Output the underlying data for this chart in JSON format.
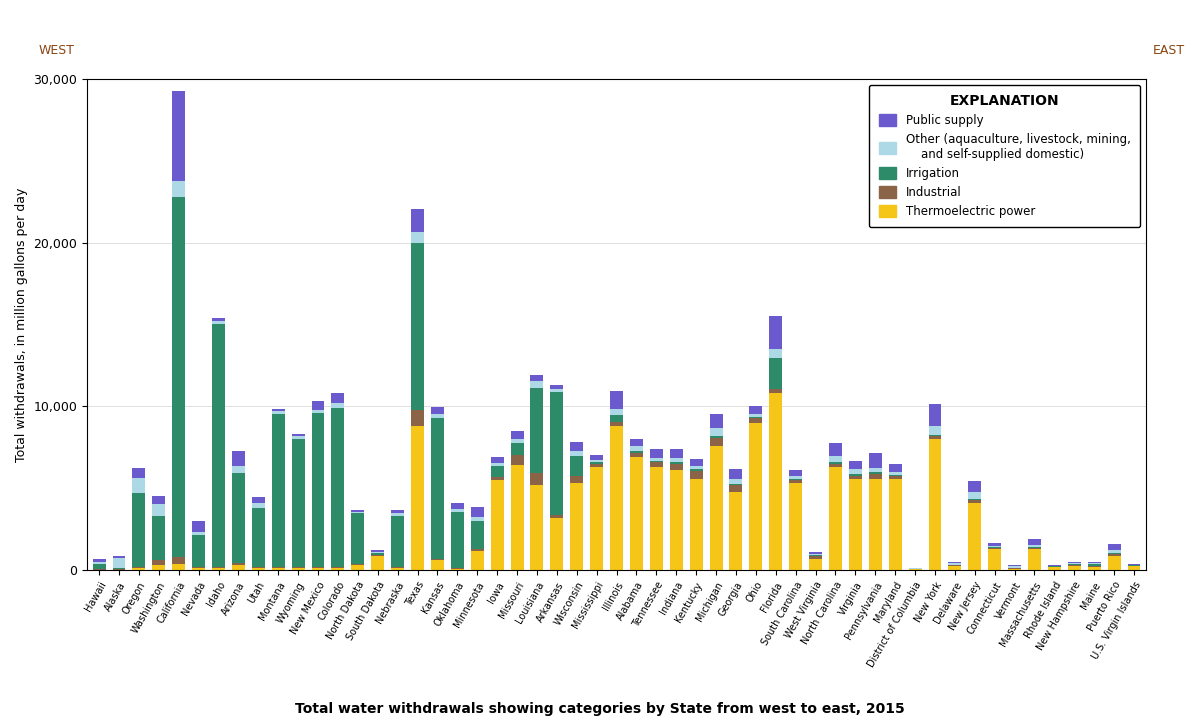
{
  "states": [
    "Hawaii",
    "Alaska",
    "Oregon",
    "Washington",
    "California",
    "Nevada",
    "Idaho",
    "Arizona",
    "Utah",
    "Montana",
    "Wyoming",
    "New Mexico",
    "Colorado",
    "North Dakota",
    "South Dakota",
    "Nebraska",
    "Texas",
    "Kansas",
    "Oklahoma",
    "Minnesota",
    "Iowa",
    "Missouri",
    "Louisiana",
    "Arkansas",
    "Wisconsin",
    "Mississippi",
    "Illinois",
    "Alabama",
    "Tennessee",
    "Indiana",
    "Kentucky",
    "Michigan",
    "Georgia",
    "Ohio",
    "Florida",
    "South Carolina",
    "West Virginia",
    "North Carolina",
    "Virginia",
    "Pennsylvania",
    "Maryland",
    "District of Columbia",
    "New York",
    "Delaware",
    "New Jersey",
    "Connecticut",
    "Vermont",
    "Massachusetts",
    "Rhode Island",
    "New Hampshire",
    "Maine",
    "Puerto Rico",
    "U.S. Virgin Islands"
  ],
  "public_supply": [
    200,
    100,
    600,
    500,
    5500,
    700,
    200,
    900,
    350,
    150,
    100,
    500,
    600,
    100,
    100,
    150,
    1400,
    400,
    350,
    600,
    350,
    500,
    400,
    250,
    600,
    250,
    1100,
    450,
    550,
    550,
    450,
    900,
    600,
    450,
    2000,
    350,
    100,
    800,
    500,
    900,
    450,
    30,
    1300,
    80,
    700,
    180,
    80,
    350,
    80,
    80,
    80,
    350,
    30
  ],
  "other": [
    80,
    600,
    900,
    700,
    1000,
    180,
    180,
    450,
    280,
    180,
    180,
    180,
    280,
    80,
    80,
    180,
    650,
    280,
    180,
    280,
    180,
    280,
    380,
    180,
    280,
    180,
    380,
    280,
    180,
    280,
    180,
    480,
    280,
    180,
    550,
    180,
    80,
    380,
    280,
    280,
    180,
    30,
    550,
    80,
    380,
    80,
    80,
    130,
    30,
    80,
    80,
    180,
    30
  ],
  "irrigation": [
    350,
    100,
    4500,
    2700,
    22000,
    1900,
    14800,
    5500,
    3600,
    9300,
    7800,
    9400,
    9700,
    3100,
    100,
    3100,
    10200,
    8600,
    3400,
    1700,
    700,
    700,
    5200,
    7500,
    1200,
    100,
    400,
    100,
    100,
    100,
    100,
    100,
    100,
    100,
    1900,
    100,
    50,
    100,
    100,
    100,
    50,
    0,
    100,
    30,
    100,
    50,
    50,
    50,
    30,
    50,
    100,
    100,
    30
  ],
  "industrial": [
    30,
    30,
    80,
    280,
    380,
    80,
    80,
    80,
    80,
    80,
    80,
    80,
    80,
    30,
    30,
    80,
    1000,
    80,
    80,
    80,
    180,
    650,
    750,
    180,
    480,
    180,
    280,
    280,
    280,
    380,
    480,
    480,
    380,
    280,
    280,
    180,
    180,
    180,
    180,
    280,
    180,
    0,
    180,
    30,
    180,
    80,
    30,
    80,
    30,
    30,
    80,
    80,
    0
  ],
  "thermoelectric": [
    30,
    30,
    150,
    350,
    400,
    150,
    150,
    350,
    150,
    150,
    150,
    150,
    150,
    350,
    900,
    150,
    8800,
    600,
    80,
    1200,
    5500,
    6400,
    5200,
    3200,
    5300,
    6300,
    8800,
    6900,
    6300,
    6100,
    5600,
    7600,
    4800,
    9000,
    10800,
    5300,
    700,
    6300,
    5600,
    5600,
    5600,
    80,
    8000,
    280,
    4100,
    1300,
    80,
    1300,
    180,
    280,
    180,
    900,
    280
  ],
  "colors": {
    "public_supply": "#6a5acd",
    "other": "#add8e6",
    "irrigation": "#2e8b6a",
    "industrial": "#8b6347",
    "thermoelectric": "#f5c518"
  },
  "title": "Total water withdrawals showing categories by State from west to east, 2015",
  "ylabel": "Total withdrawals, in million gallons per day",
  "ylim": [
    0,
    30000
  ],
  "yticks": [
    0,
    10000,
    20000,
    30000
  ],
  "yticklabels": [
    "0",
    "10,000",
    "20,000",
    "30,000"
  ]
}
